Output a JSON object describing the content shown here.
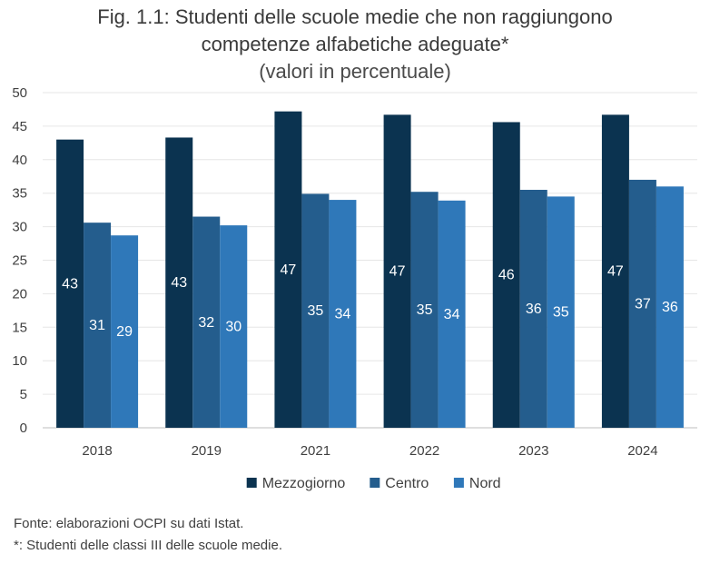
{
  "chart_data": {
    "type": "bar",
    "title_lines": [
      "Fig. 1.1: Studenti delle scuole medie che non raggiungono",
      "competenze alfabetiche adeguate*"
    ],
    "subtitle": "(valori in percentuale)",
    "categories": [
      "2018",
      "2019",
      "2021",
      "2022",
      "2023",
      "2024"
    ],
    "series": [
      {
        "name": "Mezzogiorno",
        "color": "#0b3350",
        "values": [
          43.0,
          43.3,
          47.2,
          46.7,
          45.6,
          46.7
        ],
        "labels": [
          "43",
          "43",
          "47",
          "47",
          "46",
          "47"
        ]
      },
      {
        "name": "Centro",
        "color": "#245d8d",
        "values": [
          30.6,
          31.5,
          34.9,
          35.2,
          35.5,
          37.0
        ],
        "labels": [
          "31",
          "32",
          "35",
          "35",
          "36",
          "37"
        ]
      },
      {
        "name": "Nord",
        "color": "#2f78b9",
        "values": [
          28.7,
          30.2,
          34.0,
          33.9,
          34.5,
          36.0
        ],
        "labels": [
          "29",
          "30",
          "34",
          "34",
          "35",
          "36"
        ]
      }
    ],
    "ylim": [
      0,
      50
    ],
    "yticks": [
      0,
      5,
      10,
      15,
      20,
      25,
      30,
      35,
      40,
      45,
      50
    ],
    "grid": true,
    "legend": "bottom"
  },
  "notes": {
    "source": "Fonte: elaborazioni OCPI su dati Istat.",
    "footnote": "*: Studenti delle classi III delle scuole medie."
  }
}
